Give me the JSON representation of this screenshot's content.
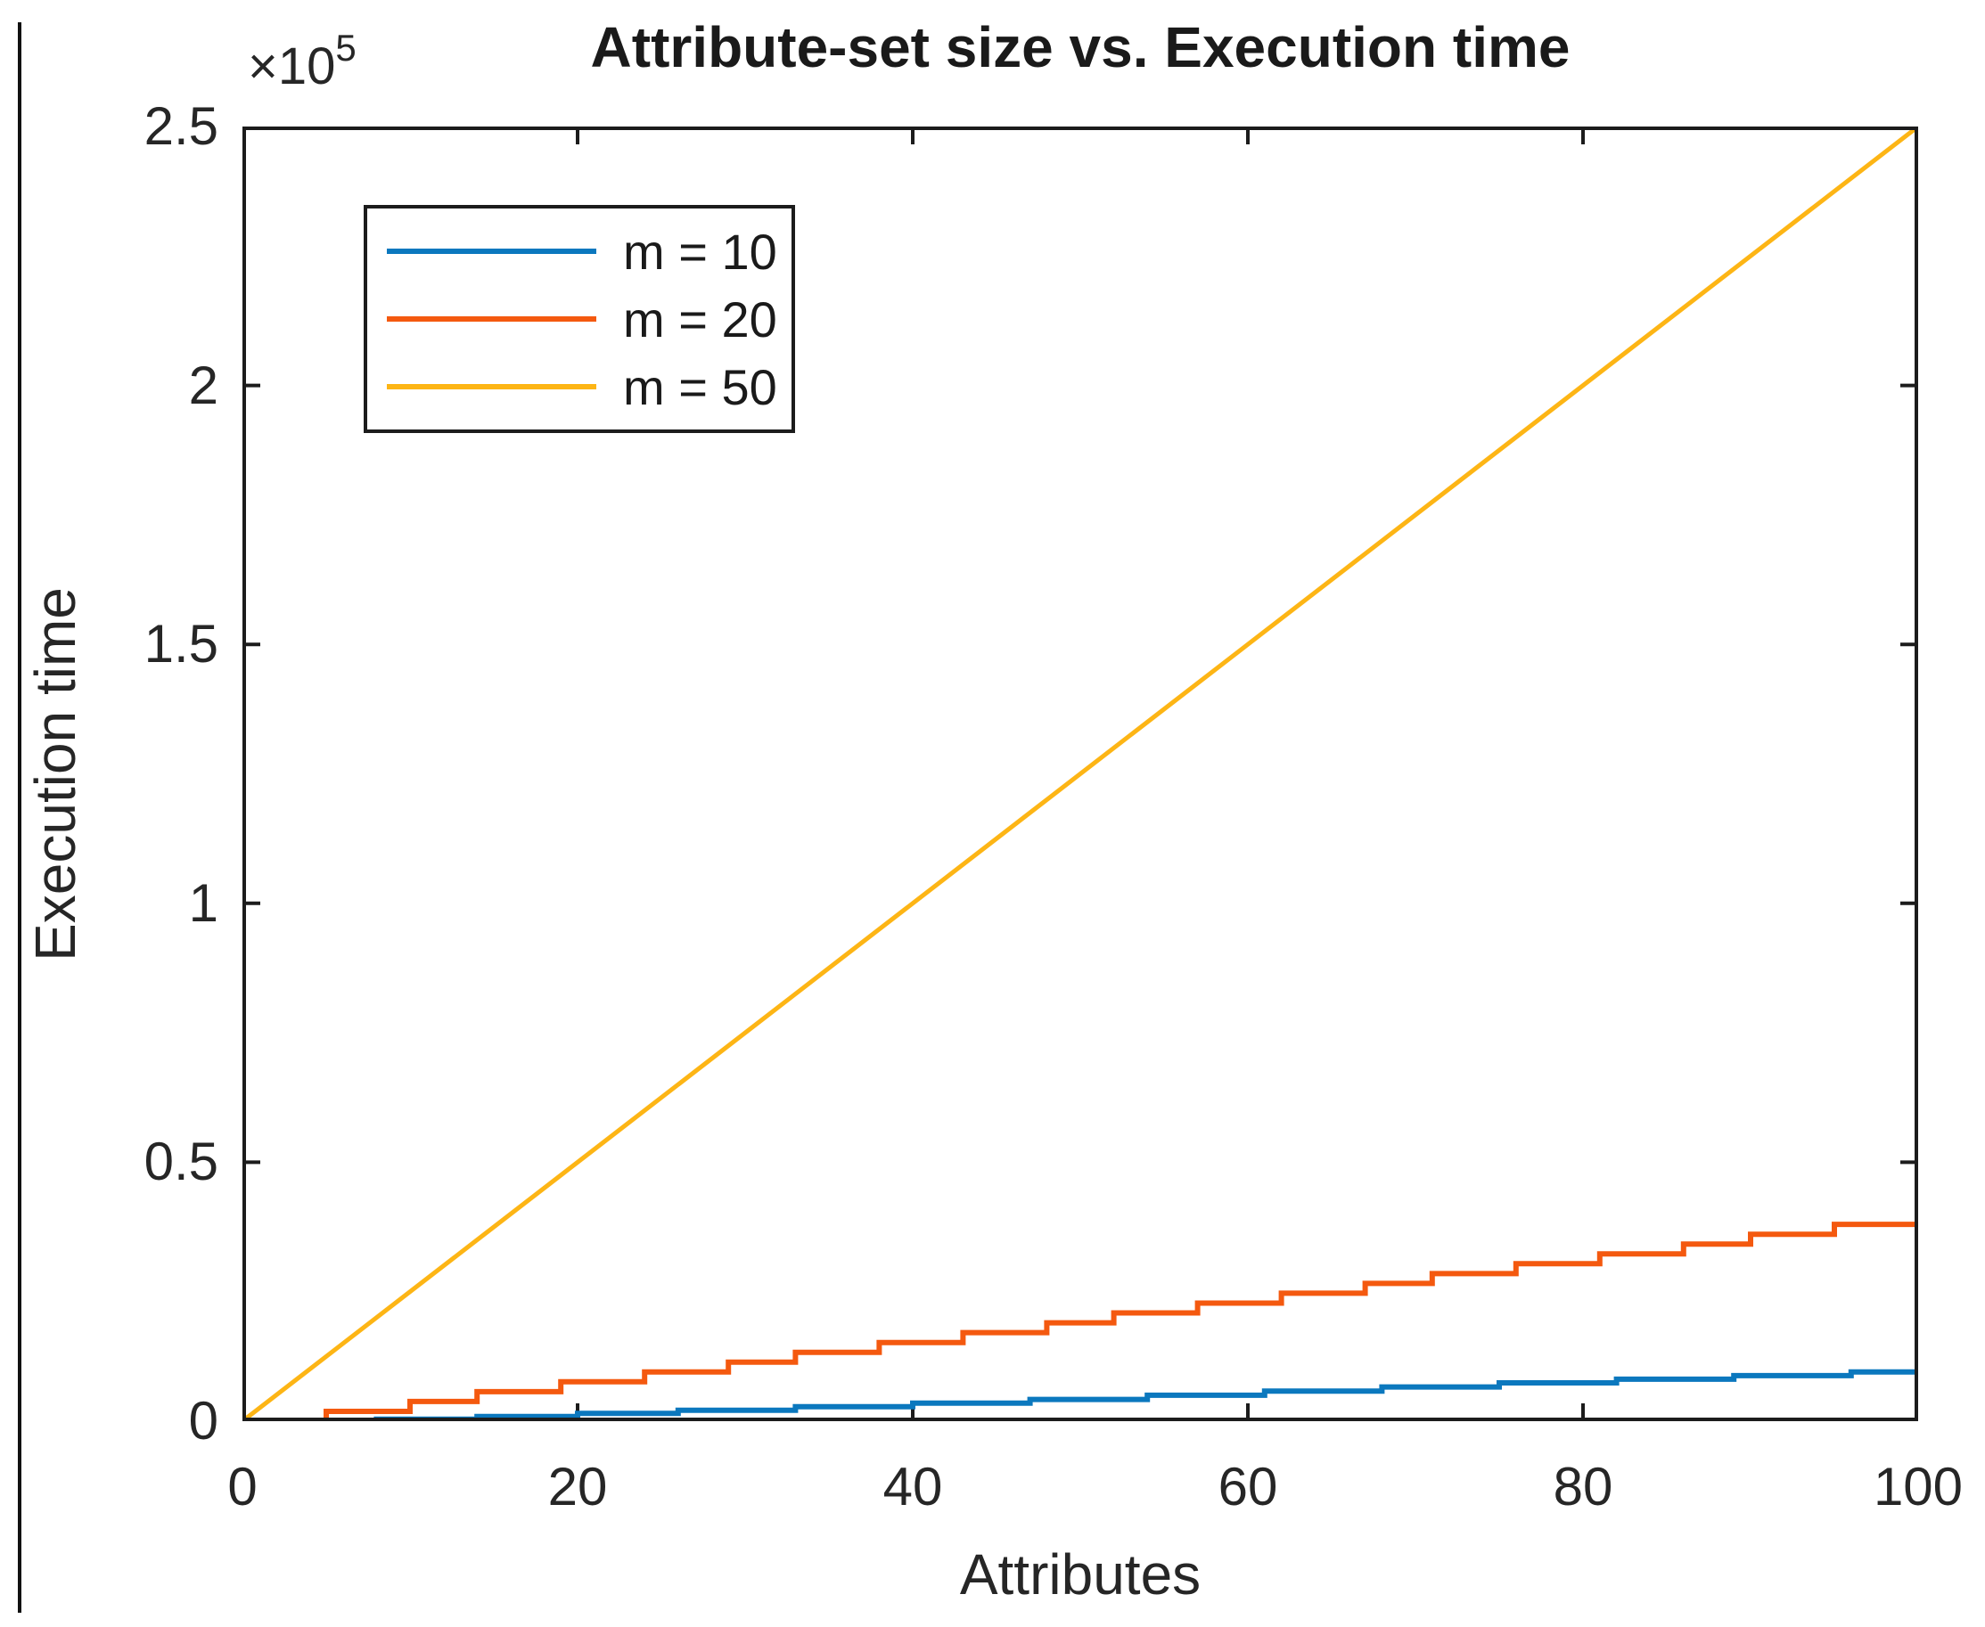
{
  "figure": {
    "background": "#ffffff",
    "axes_color": "#1c1c1c",
    "text_color": "#262626"
  },
  "chart_data": {
    "type": "line",
    "title": "Attribute-set size vs. Execution time",
    "xlabel": "Attributes",
    "ylabel": "Execution time",
    "y_offset_label": {
      "base": "×10",
      "exponent": "5"
    },
    "xlim": [
      0,
      100
    ],
    "ylim": [
      0,
      250000
    ],
    "x_ticks": [
      0,
      20,
      40,
      60,
      80,
      100
    ],
    "x_tick_labels": [
      "0",
      "20",
      "40",
      "60",
      "80",
      "100"
    ],
    "y_ticks": [
      0,
      50000,
      100000,
      150000,
      200000,
      250000
    ],
    "y_tick_labels": [
      "0",
      "0.5",
      "1",
      "1.5",
      "2",
      "2.5"
    ],
    "grid": false,
    "legend_position": "upper-left-inside",
    "series": [
      {
        "name": "m = 10",
        "color": "#0b78be",
        "step": true,
        "points": [
          [
            0,
            0
          ],
          [
            8,
            400
          ],
          [
            14,
            900
          ],
          [
            20,
            1500
          ],
          [
            26,
            2100
          ],
          [
            33,
            2800
          ],
          [
            40,
            3500
          ],
          [
            47,
            4200
          ],
          [
            54,
            5000
          ],
          [
            61,
            5800
          ],
          [
            68,
            6600
          ],
          [
            75,
            7400
          ],
          [
            82,
            8100
          ],
          [
            89,
            8800
          ],
          [
            96,
            9500
          ],
          [
            100,
            9500
          ]
        ]
      },
      {
        "name": "m = 20",
        "color": "#f4590f",
        "step": true,
        "points": [
          [
            0,
            0
          ],
          [
            5,
            1900
          ],
          [
            10,
            3800
          ],
          [
            14,
            5700
          ],
          [
            19,
            7600
          ],
          [
            24,
            9500
          ],
          [
            29,
            11400
          ],
          [
            33,
            13300
          ],
          [
            38,
            15200
          ],
          [
            43,
            17100
          ],
          [
            48,
            19000
          ],
          [
            52,
            20900
          ],
          [
            57,
            22800
          ],
          [
            62,
            24700
          ],
          [
            67,
            26600
          ],
          [
            71,
            28500
          ],
          [
            76,
            30400
          ],
          [
            81,
            32300
          ],
          [
            86,
            34200
          ],
          [
            90,
            36100
          ],
          [
            95,
            38000
          ],
          [
            100,
            39900
          ]
        ]
      },
      {
        "name": "m = 50",
        "color": "#fdb515",
        "step": false,
        "points": [
          [
            0,
            0
          ],
          [
            100,
            250000
          ]
        ]
      }
    ]
  }
}
